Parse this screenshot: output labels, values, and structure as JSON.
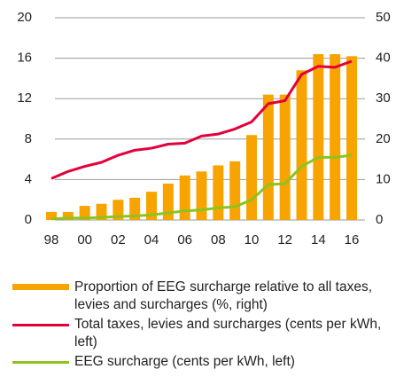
{
  "chart_data": {
    "type": "bar_line",
    "categories": [
      "98",
      null,
      "00",
      null,
      "02",
      null,
      "04",
      null,
      "06",
      null,
      "08",
      null,
      "10",
      null,
      "12",
      null,
      "14",
      null,
      "16"
    ],
    "series": [
      {
        "name": "Proportion of EEG surcharge relative to all taxes, levies and surcharges (%, right)",
        "type": "bar",
        "axis": "y2",
        "color": "#f7a400",
        "values": [
          2,
          2,
          3.5,
          4,
          5,
          5.5,
          7,
          9,
          11,
          12,
          13.5,
          14.5,
          21,
          31,
          31,
          37,
          41,
          41,
          40.5
        ]
      },
      {
        "name": "Total taxes, levies and surcharges (cents per kWh, left)",
        "type": "line",
        "axis": "y",
        "color": "#e3003a",
        "values": [
          4.1,
          4.8,
          5.3,
          5.7,
          6.4,
          6.9,
          7.1,
          7.5,
          7.6,
          8.3,
          8.5,
          9.0,
          9.7,
          11.5,
          11.8,
          14.4,
          15.2,
          15.1,
          15.7
        ]
      },
      {
        "name": "EEG surcharge (cents per kWh, left)",
        "type": "line",
        "axis": "y",
        "color": "#8dc31e",
        "values": [
          0.1,
          0.2,
          0.2,
          0.25,
          0.35,
          0.4,
          0.5,
          0.7,
          0.9,
          1.0,
          1.2,
          1.3,
          2.0,
          3.5,
          3.6,
          5.3,
          6.2,
          6.2,
          6.4
        ]
      }
    ],
    "ylim": [
      0,
      20
    ],
    "yticks": [
      0,
      4,
      8,
      12,
      16,
      20
    ],
    "y2lim": [
      0,
      50
    ],
    "y2ticks": [
      0,
      10,
      20,
      30,
      40,
      50
    ],
    "grid": true
  }
}
